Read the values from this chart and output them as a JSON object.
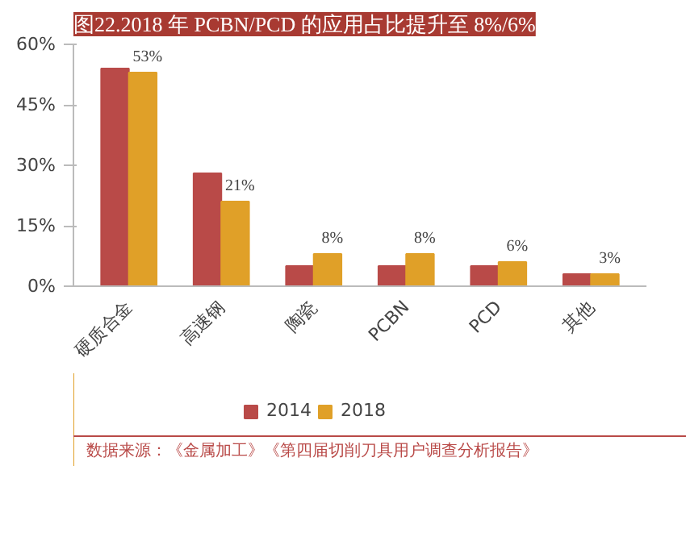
{
  "chart_data": {
    "type": "bar",
    "title": "图22.2018 年 PCBN/PCD 的应用占比提升至 8%/6%",
    "categories": [
      "硬质合金",
      "高速钢",
      "陶瓷",
      "PCBN",
      "PCD",
      "其他"
    ],
    "series": [
      {
        "name": "2014",
        "color": "#b94a48",
        "values": [
          54,
          28,
          5,
          5,
          5,
          3
        ]
      },
      {
        "name": "2018",
        "color": "#e0a028",
        "values": [
          53,
          21,
          8,
          8,
          6,
          3
        ],
        "value_labels": [
          "53%",
          "21%",
          "8%",
          "8%",
          "6%",
          "3%"
        ]
      }
    ],
    "ylim": [
      0,
      60
    ],
    "yticks": [
      {
        "value": 0,
        "label": "0%"
      },
      {
        "value": 15,
        "label": "15%"
      },
      {
        "value": 30,
        "label": "30%"
      },
      {
        "value": 45,
        "label": "45%"
      },
      {
        "value": 60,
        "label": "60%"
      }
    ],
    "grid": false,
    "legend": "bottom",
    "annotations": [
      "数据来源：《金属加工》《第四届切削刀具用户调查分析报告》"
    ]
  }
}
